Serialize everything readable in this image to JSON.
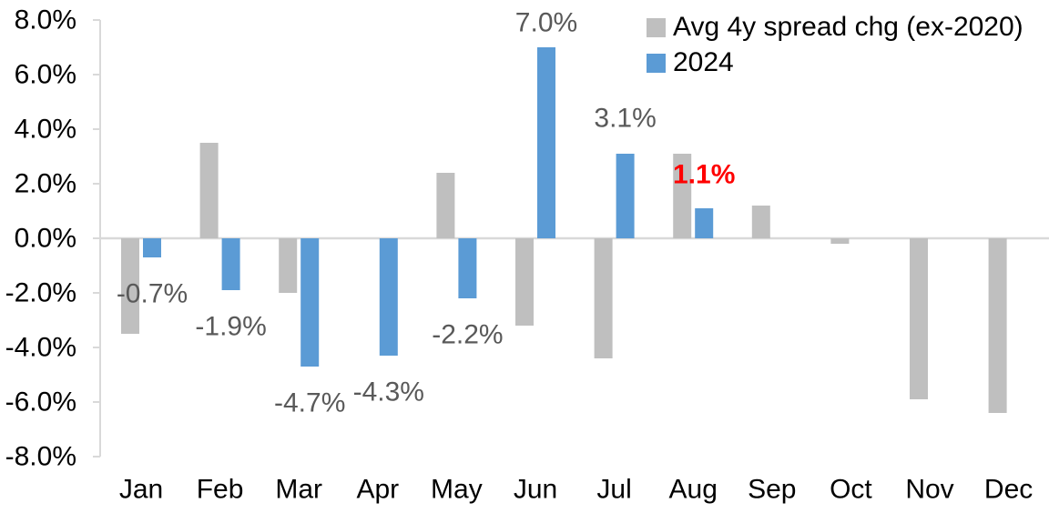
{
  "chart_data": {
    "type": "bar",
    "title": "",
    "xlabel": "",
    "ylabel": "",
    "categories": [
      "Jan",
      "Feb",
      "Mar",
      "Apr",
      "May",
      "Jun",
      "Jul",
      "Aug",
      "Sep",
      "Oct",
      "Nov",
      "Dec"
    ],
    "series": [
      {
        "name": "Avg 4y spread chg (ex-2020)",
        "color": "#BFBFBF",
        "values": [
          -3.5,
          3.5,
          -2.0,
          0.0,
          2.4,
          -3.2,
          -4.4,
          3.1,
          1.2,
          -0.2,
          -5.9,
          -6.4
        ]
      },
      {
        "name": "2024",
        "color": "#5B9BD5",
        "values": [
          -0.7,
          -1.9,
          -4.7,
          -4.3,
          -2.2,
          7.0,
          3.1,
          1.1,
          null,
          null,
          null,
          null
        ]
      }
    ],
    "data_labels": [
      {
        "category": "Jan",
        "series": "2024",
        "text": "-0.7%",
        "color": "#595959",
        "bold": false
      },
      {
        "category": "Feb",
        "series": "2024",
        "text": "-1.9%",
        "color": "#595959",
        "bold": false
      },
      {
        "category": "Mar",
        "series": "2024",
        "text": "-4.7%",
        "color": "#595959",
        "bold": false
      },
      {
        "category": "Apr",
        "series": "2024",
        "text": "-4.3%",
        "color": "#595959",
        "bold": false
      },
      {
        "category": "May",
        "series": "2024",
        "text": "-2.2%",
        "color": "#595959",
        "bold": false
      },
      {
        "category": "Jun",
        "series": "2024",
        "text": "7.0%",
        "color": "#595959",
        "bold": false
      },
      {
        "category": "Jul",
        "series": "2024",
        "text": "3.1%",
        "color": "#595959",
        "bold": false
      },
      {
        "category": "Aug",
        "series": "2024",
        "text": "1.1%",
        "color": "#FF0000",
        "bold": true
      }
    ],
    "y_axis": {
      "tick_labels": [
        "8.0%",
        "6.0%",
        "4.0%",
        "2.0%",
        "0.0%",
        "-2.0%",
        "-4.0%",
        "-6.0%",
        "-8.0%"
      ],
      "tick_values": [
        8,
        6,
        4,
        2,
        0,
        -2,
        -4,
        -6,
        -8
      ],
      "min": -8,
      "max": 8,
      "unit": "percent"
    },
    "legend": {
      "position": "top-right",
      "entries": [
        "Avg 4y spread chg (ex-2020)",
        "2024"
      ]
    },
    "grid": "zero-line-only",
    "style": {
      "axis_line_color": "#D9D9D9",
      "axis_text_color": "#000000",
      "data_label_color": "#595959",
      "highlight_color": "#FF0000",
      "background": "#FFFFFF"
    }
  }
}
